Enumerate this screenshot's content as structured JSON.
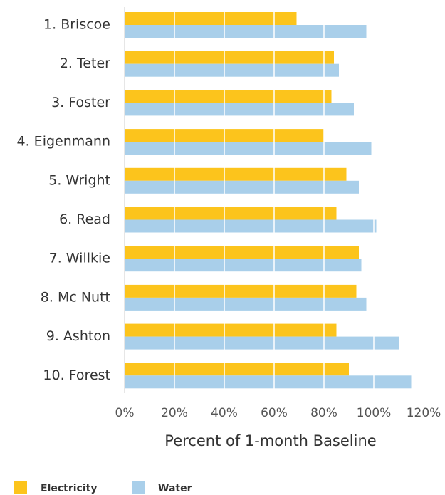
{
  "chart_data": {
    "type": "bar",
    "orientation": "horizontal",
    "x_label": "Percent of 1-month Baseline",
    "categories": [
      "1. Briscoe",
      "2. Teter",
      "3. Foster",
      "4. Eigenmann",
      "5. Wright",
      "6. Read",
      "7. Willkie",
      "8. Mc Nutt",
      "9. Ashton",
      "10. Forest"
    ],
    "series": [
      {
        "name": "Electricity",
        "color": "#fcc41c",
        "values": [
          69,
          84,
          83,
          80,
          89,
          85,
          94,
          93,
          85,
          90
        ]
      },
      {
        "name": "Water",
        "color": "#a9cfea",
        "values": [
          97,
          86,
          92,
          99,
          94,
          101,
          95,
          97,
          110,
          115
        ]
      }
    ],
    "xlim": [
      0,
      120
    ],
    "xticks": [
      {
        "value": 0,
        "label": "0%"
      },
      {
        "value": 20,
        "label": "20%"
      },
      {
        "value": 40,
        "label": "40%"
      },
      {
        "value": 60,
        "label": "60%"
      },
      {
        "value": 80,
        "label": "80%"
      },
      {
        "value": 100,
        "label": "100%"
      },
      {
        "value": 120,
        "label": "120%"
      }
    ],
    "grid": true,
    "legend": "bottom"
  }
}
